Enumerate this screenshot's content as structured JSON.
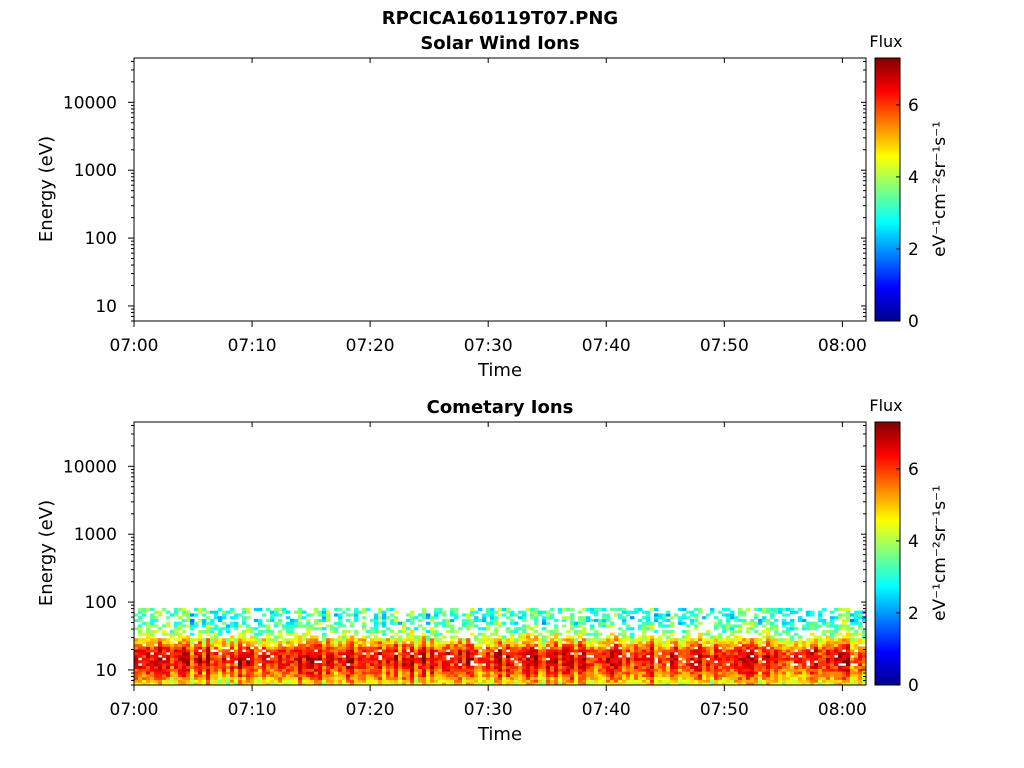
{
  "figure": {
    "title": "RPCICA160119T07.PNG"
  },
  "chart_data": [
    {
      "type": "heatmap",
      "title": "Solar Wind Ions",
      "xlabel": "Time",
      "ylabel": "Energy (eV)",
      "x_ticks": [
        "07:00",
        "07:10",
        "07:20",
        "07:30",
        "07:40",
        "07:50",
        "08:00"
      ],
      "y_ticks": [
        "10",
        "100",
        "1000",
        "10000"
      ],
      "y_scale": "log",
      "xlim": [
        "07:00",
        "08:02"
      ],
      "ylim": [
        6,
        45000
      ],
      "colorbar": {
        "title": "Flux",
        "label": "eV⁻¹cm⁻²sr⁻¹s⁻¹",
        "ticks": [
          "0",
          "2",
          "4",
          "6"
        ],
        "range": [
          0,
          7.3
        ],
        "colormap": [
          "#00008f",
          "#0000ff",
          "#00ffff",
          "#ffff00",
          "#ff0000",
          "#800000"
        ]
      },
      "data": "none"
    },
    {
      "type": "heatmap",
      "title": "Cometary Ions",
      "xlabel": "Time",
      "ylabel": "Energy (eV)",
      "x_ticks": [
        "07:00",
        "07:10",
        "07:20",
        "07:30",
        "07:40",
        "07:50",
        "08:00"
      ],
      "y_ticks": [
        "10",
        "100",
        "1000",
        "10000"
      ],
      "y_scale": "log",
      "xlim": [
        "07:00",
        "08:02"
      ],
      "ylim": [
        6,
        45000
      ],
      "colorbar": {
        "title": "Flux",
        "label": "eV⁻¹cm⁻²sr⁻¹s⁻¹",
        "ticks": [
          "0",
          "2",
          "4",
          "6"
        ],
        "range": [
          0,
          7.3
        ],
        "colormap": [
          "#00008f",
          "#0000ff",
          "#00ffff",
          "#ffff00",
          "#ff0000",
          "#800000"
        ]
      },
      "energy_profile": [
        {
          "energy": 6,
          "flux": 4.5
        },
        {
          "energy": 9,
          "flux": 5.6
        },
        {
          "energy": 14,
          "flux": 6.4
        },
        {
          "energy": 19,
          "flux": 6.1
        },
        {
          "energy": 25,
          "flux": 5.0
        },
        {
          "energy": 35,
          "flux": 3.8
        },
        {
          "energy": 55,
          "flux": 3.0
        },
        {
          "energy": 80,
          "flux": 3.3
        }
      ],
      "energy_range": [
        6,
        82
      ]
    }
  ]
}
